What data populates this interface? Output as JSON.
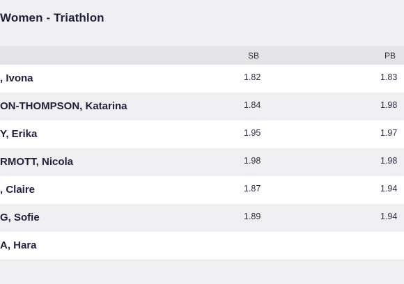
{
  "title": "Women - Triathlon",
  "columns": {
    "sb": "SB",
    "pb": "PB"
  },
  "rows": [
    {
      "name": ", Ivona",
      "sb": "1.82",
      "pb": "1.83"
    },
    {
      "name": "ON-THOMPSON, Katarina",
      "sb": "1.84",
      "pb": "1.98"
    },
    {
      "name": "Y, Erika",
      "sb": "1.95",
      "pb": "1.97"
    },
    {
      "name": "RMOTT, Nicola",
      "sb": "1.98",
      "pb": "1.98"
    },
    {
      "name": ", Claire",
      "sb": "1.87",
      "pb": "1.94"
    },
    {
      "name": "G, Sofie",
      "sb": "1.89",
      "pb": "1.94"
    },
    {
      "name": "A, Hara",
      "sb": "",
      "pb": ""
    }
  ]
}
